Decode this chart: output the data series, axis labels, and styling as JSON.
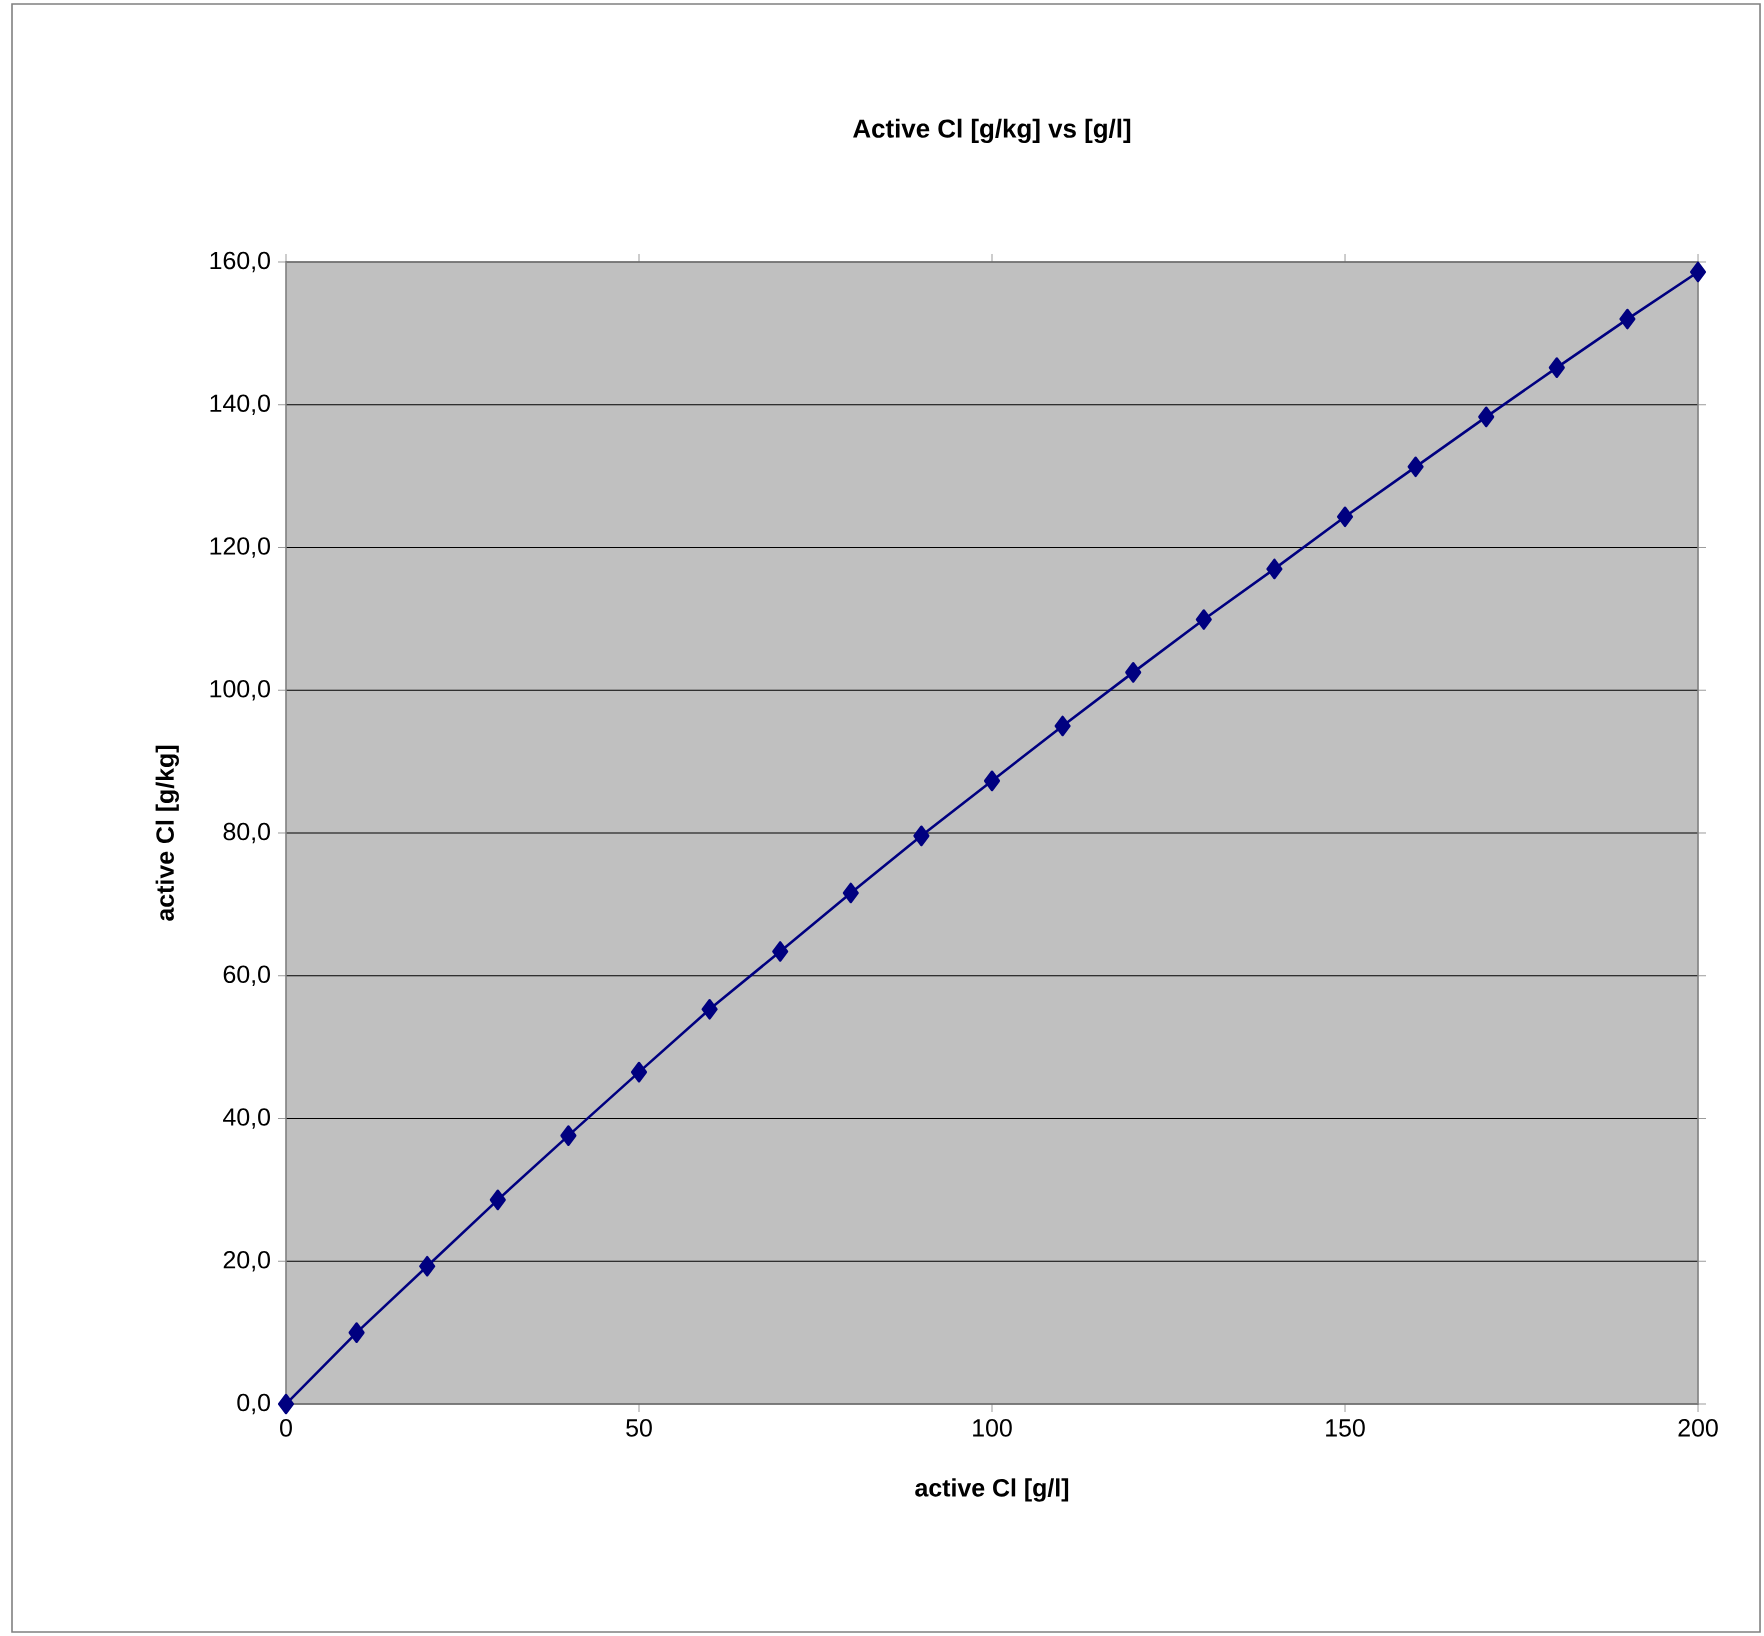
{
  "chart_data": {
    "type": "line",
    "title": "Active Cl [g/kg] vs [g/l]",
    "xlabel": "active Cl [g/l]",
    "ylabel": "active Cl [g/kg]",
    "x": [
      0,
      10,
      20,
      30,
      40,
      50,
      60,
      70,
      80,
      90,
      100,
      110,
      120,
      130,
      140,
      150,
      160,
      170,
      180,
      190,
      200
    ],
    "series": [
      {
        "color": "#000080",
        "values": [
          0,
          10.0,
          19.3,
          28.6,
          37.6,
          46.5,
          55.3,
          63.4,
          71.6,
          79.6,
          87.3,
          95.0,
          102.5,
          109.9,
          117.0,
          124.3,
          131.3,
          138.3,
          145.2,
          152.0,
          158.6
        ]
      }
    ],
    "xlim": [
      0,
      200
    ],
    "xticks": [
      0,
      50,
      100,
      150,
      200
    ],
    "ylim": [
      0,
      160
    ],
    "yticks": [
      {
        "value": 0,
        "label": "0,0"
      },
      {
        "value": 20,
        "label": "20,0"
      },
      {
        "value": 40,
        "label": "40,0"
      },
      {
        "value": 60,
        "label": "60,0"
      },
      {
        "value": 80,
        "label": "80,0"
      },
      {
        "value": 100,
        "label": "100,0"
      },
      {
        "value": 120,
        "label": "120,0"
      },
      {
        "value": 140,
        "label": "140,0"
      },
      {
        "value": 160,
        "label": "160,0"
      }
    ],
    "grid": "y",
    "marker": "diamond",
    "line_style": "solid"
  }
}
